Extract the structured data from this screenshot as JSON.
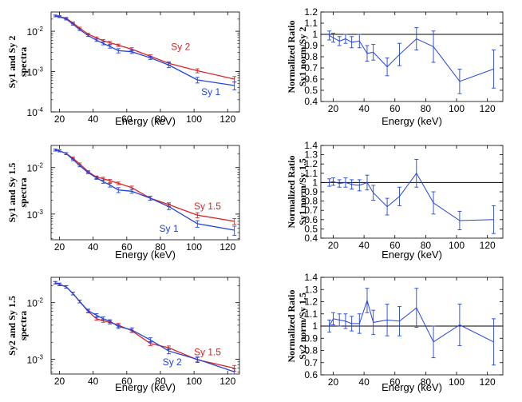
{
  "figure": {
    "xlabel": "Energy (keV)"
  },
  "chart_data": [
    {
      "id": "spec1",
      "type": "line",
      "yscale": "log",
      "ylabel_lines": [
        "Sy1 and  Sy 2",
        "spectra"
      ],
      "xlim": [
        15,
        127
      ],
      "ylim": [
        0.0001,
        0.03
      ],
      "xticks": [
        20,
        40,
        60,
        80,
        100,
        120
      ],
      "yticks": [
        {
          "v": 0.0001,
          "b": "10",
          "e": "-4"
        },
        {
          "v": 0.001,
          "b": "10",
          "e": "-3"
        },
        {
          "v": 0.01,
          "b": "10",
          "e": "-2"
        }
      ],
      "x": [
        17.5,
        20,
        24,
        28,
        32,
        37,
        42,
        46,
        50,
        55,
        63,
        74,
        85,
        102,
        124
      ],
      "series": [
        {
          "name": "Sy 2",
          "color": "#dd2222",
          "values": [
            0.024,
            0.023,
            0.021,
            0.016,
            0.012,
            0.0085,
            0.0068,
            0.0058,
            0.0052,
            0.0045,
            0.0036,
            0.0024,
            0.0016,
            0.00105,
            0.00065
          ],
          "errors": [
            0.0012,
            0.0012,
            0.001,
            0.0009,
            0.0006,
            0.0004,
            0.0004,
            0.0004,
            0.0004,
            0.0003,
            0.0003,
            0.0002,
            0.00015,
            0.00012,
            0.0001
          ]
        },
        {
          "name": "Sy 1",
          "color": "#2244dd",
          "values": [
            0.024,
            0.023,
            0.02,
            0.015,
            0.011,
            0.0078,
            0.006,
            0.005,
            0.0042,
            0.0033,
            0.0031,
            0.0022,
            0.00145,
            0.00062,
            0.00045
          ],
          "errors": [
            0.0012,
            0.0012,
            0.001,
            0.0009,
            0.0006,
            0.0004,
            0.0004,
            0.0004,
            0.0004,
            0.0004,
            0.0003,
            0.0002,
            0.0002,
            0.0001,
            0.0001
          ]
        }
      ],
      "labels": [
        {
          "text": "Sy 2",
          "color": "#dd2222",
          "x": 92,
          "y": 0.0034
        },
        {
          "text": "Sy 1",
          "color": "#2244dd",
          "x": 110,
          "y": 0.00026
        }
      ]
    },
    {
      "id": "spec2",
      "type": "line",
      "yscale": "log",
      "ylabel_lines": [
        "Sy1 and  Sy 1.5",
        "spectra"
      ],
      "xlim": [
        15,
        127
      ],
      "ylim": [
        0.00028,
        0.03
      ],
      "xticks": [
        20,
        40,
        60,
        80,
        100,
        120
      ],
      "yticks": [
        {
          "v": 0.001,
          "b": "10",
          "e": "-3"
        },
        {
          "v": 0.01,
          "b": "10",
          "e": "-2"
        }
      ],
      "x": [
        17.5,
        20,
        24,
        28,
        32,
        37,
        42,
        46,
        50,
        55,
        63,
        74,
        85,
        102,
        124
      ],
      "series": [
        {
          "name": "Sy 1.5",
          "color": "#dd2222",
          "values": [
            0.024,
            0.023,
            0.02,
            0.016,
            0.012,
            0.0082,
            0.0062,
            0.0058,
            0.0052,
            0.0046,
            0.0037,
            0.0022,
            0.0016,
            0.00095,
            0.0007
          ],
          "errors": [
            0.0012,
            0.0012,
            0.001,
            0.0009,
            0.0006,
            0.0004,
            0.0004,
            0.0004,
            0.0004,
            0.0003,
            0.0003,
            0.0002,
            0.00015,
            0.00012,
            0.0001
          ]
        },
        {
          "name": "Sy 1",
          "color": "#2244dd",
          "values": [
            0.024,
            0.023,
            0.02,
            0.015,
            0.011,
            0.0078,
            0.006,
            0.005,
            0.0042,
            0.0033,
            0.0031,
            0.0022,
            0.00145,
            0.00062,
            0.00045
          ],
          "errors": [
            0.0012,
            0.0012,
            0.001,
            0.0009,
            0.0006,
            0.0004,
            0.0004,
            0.0004,
            0.0004,
            0.0004,
            0.0003,
            0.0002,
            0.0002,
            0.0001,
            0.0001
          ]
        }
      ],
      "labels": [
        {
          "text": "Sy 1.5",
          "color": "#dd2222",
          "x": 108,
          "y": 0.00125
        },
        {
          "text": "Sy 1",
          "color": "#2244dd",
          "x": 85,
          "y": 0.00042
        }
      ]
    },
    {
      "id": "spec3",
      "type": "line",
      "yscale": "log",
      "ylabel_lines": [
        "Sy2 and  Sy 1.5",
        "spectra"
      ],
      "xlim": [
        15,
        127
      ],
      "ylim": [
        0.00055,
        0.028
      ],
      "xticks": [
        20,
        40,
        60,
        80,
        100,
        120
      ],
      "yticks": [
        {
          "v": 0.001,
          "b": "10",
          "e": "-3"
        },
        {
          "v": 0.01,
          "b": "10",
          "e": "-2"
        }
      ],
      "x": [
        17.5,
        20,
        24,
        28,
        32,
        37,
        42,
        46,
        50,
        55,
        63,
        74,
        85,
        102,
        124
      ],
      "series": [
        {
          "name": "Sy 1.5",
          "color": "#dd2222",
          "values": [
            0.0225,
            0.021,
            0.019,
            0.0145,
            0.0105,
            0.007,
            0.0052,
            0.0048,
            0.0045,
            0.004,
            0.0032,
            0.0019,
            0.0016,
            0.00098,
            0.0007
          ],
          "errors": [
            0.0011,
            0.0011,
            0.001,
            0.0008,
            0.0006,
            0.0004,
            0.0003,
            0.0003,
            0.0003,
            0.0003,
            0.0002,
            0.00015,
            0.00012,
            0.0001,
            8e-05
          ]
        },
        {
          "name": "Sy 2",
          "color": "#2244dd",
          "values": [
            0.0225,
            0.021,
            0.019,
            0.0145,
            0.0105,
            0.0072,
            0.006,
            0.0052,
            0.0047,
            0.0038,
            0.0033,
            0.0022,
            0.0014,
            0.001,
            0.0006
          ],
          "errors": [
            0.0011,
            0.0011,
            0.001,
            0.0008,
            0.0006,
            0.0005,
            0.0004,
            0.0004,
            0.0003,
            0.0003,
            0.0003,
            0.0002,
            0.00015,
            0.0001,
            8e-05
          ]
        }
      ],
      "labels": [
        {
          "text": "Sy 1.5",
          "color": "#dd2222",
          "x": 108,
          "y": 0.00118
        },
        {
          "text": "Sy 2",
          "color": "#2244dd",
          "x": 87,
          "y": 0.00079
        }
      ]
    },
    {
      "id": "ratio1",
      "type": "line",
      "ylabel_lines": [
        "Normalized Ratio",
        "Sy1 norm/Sy 2"
      ],
      "xlim": [
        12,
        130
      ],
      "ylim": [
        0.4,
        1.2
      ],
      "xticks": [
        20,
        40,
        60,
        80,
        100,
        120
      ],
      "yticks": [
        "0.4",
        "0.5",
        "0.6",
        "0.7",
        "0.8",
        "0.9",
        "1",
        "1.1",
        "1.2"
      ],
      "reference_line": 1,
      "x": [
        17.5,
        20,
        24,
        28,
        32,
        37,
        42,
        46,
        55,
        63,
        74,
        85,
        102,
        124
      ],
      "series": [
        {
          "name": "Sy1 norm/Sy 2",
          "color": "#2244dd",
          "values": [
            0.99,
            0.97,
            0.94,
            0.96,
            0.93,
            0.94,
            0.83,
            0.84,
            0.71,
            0.82,
            0.96,
            0.89,
            0.58,
            0.69
          ],
          "errors": [
            0.04,
            0.04,
            0.04,
            0.04,
            0.05,
            0.06,
            0.07,
            0.07,
            0.08,
            0.1,
            0.1,
            0.14,
            0.11,
            0.17
          ]
        }
      ]
    },
    {
      "id": "ratio2",
      "type": "line",
      "ylabel_lines": [
        "Normalized Ratio",
        "Sy1 norm/Sy 1.5"
      ],
      "xlim": [
        12,
        130
      ],
      "ylim": [
        0.4,
        1.4
      ],
      "xticks": [
        20,
        40,
        60,
        80,
        100,
        120
      ],
      "yticks": [
        "0.4",
        "0.5",
        "0.6",
        "0.7",
        "0.8",
        "0.9",
        "1",
        "1.1",
        "1.2",
        "1.3",
        "1.4"
      ],
      "reference_line": 1,
      "x": [
        17.5,
        20,
        24,
        28,
        32,
        37,
        42,
        46,
        55,
        63,
        74,
        85,
        102,
        124
      ],
      "series": [
        {
          "name": "Sy1 norm/Sy 1.5",
          "color": "#2244dd",
          "values": [
            1.0,
            1.01,
            0.99,
            1.0,
            0.98,
            0.97,
            1.0,
            0.89,
            0.74,
            0.85,
            1.1,
            0.78,
            0.59,
            0.6
          ],
          "errors": [
            0.04,
            0.04,
            0.04,
            0.05,
            0.05,
            0.06,
            0.08,
            0.08,
            0.09,
            0.1,
            0.15,
            0.12,
            0.1,
            0.15
          ]
        }
      ]
    },
    {
      "id": "ratio3",
      "type": "line",
      "ylabel_lines": [
        "Normalized Ratio",
        "Sy2 norm/Sy 1.5"
      ],
      "xlim": [
        12,
        130
      ],
      "ylim": [
        0.6,
        1.4
      ],
      "xticks": [
        20,
        40,
        60,
        80,
        100,
        120
      ],
      "yticks": [
        "0.6",
        "0.7",
        "0.8",
        "0.9",
        "1",
        "1.1",
        "1.2",
        "1.3",
        "1.4"
      ],
      "reference_line": 1,
      "x": [
        17.5,
        20,
        24,
        28,
        32,
        37,
        42,
        46,
        55,
        63,
        74,
        85,
        102,
        124
      ],
      "series": [
        {
          "name": "Sy2 norm/Sy 1.5",
          "color": "#2244dd",
          "values": [
            1.0,
            1.06,
            1.05,
            1.04,
            1.02,
            1.02,
            1.21,
            1.03,
            1.05,
            1.04,
            1.15,
            0.87,
            1.01,
            0.87
          ],
          "errors": [
            0.05,
            0.05,
            0.05,
            0.06,
            0.06,
            0.08,
            0.1,
            0.1,
            0.13,
            0.12,
            0.16,
            0.13,
            0.17,
            0.19
          ]
        }
      ]
    }
  ]
}
